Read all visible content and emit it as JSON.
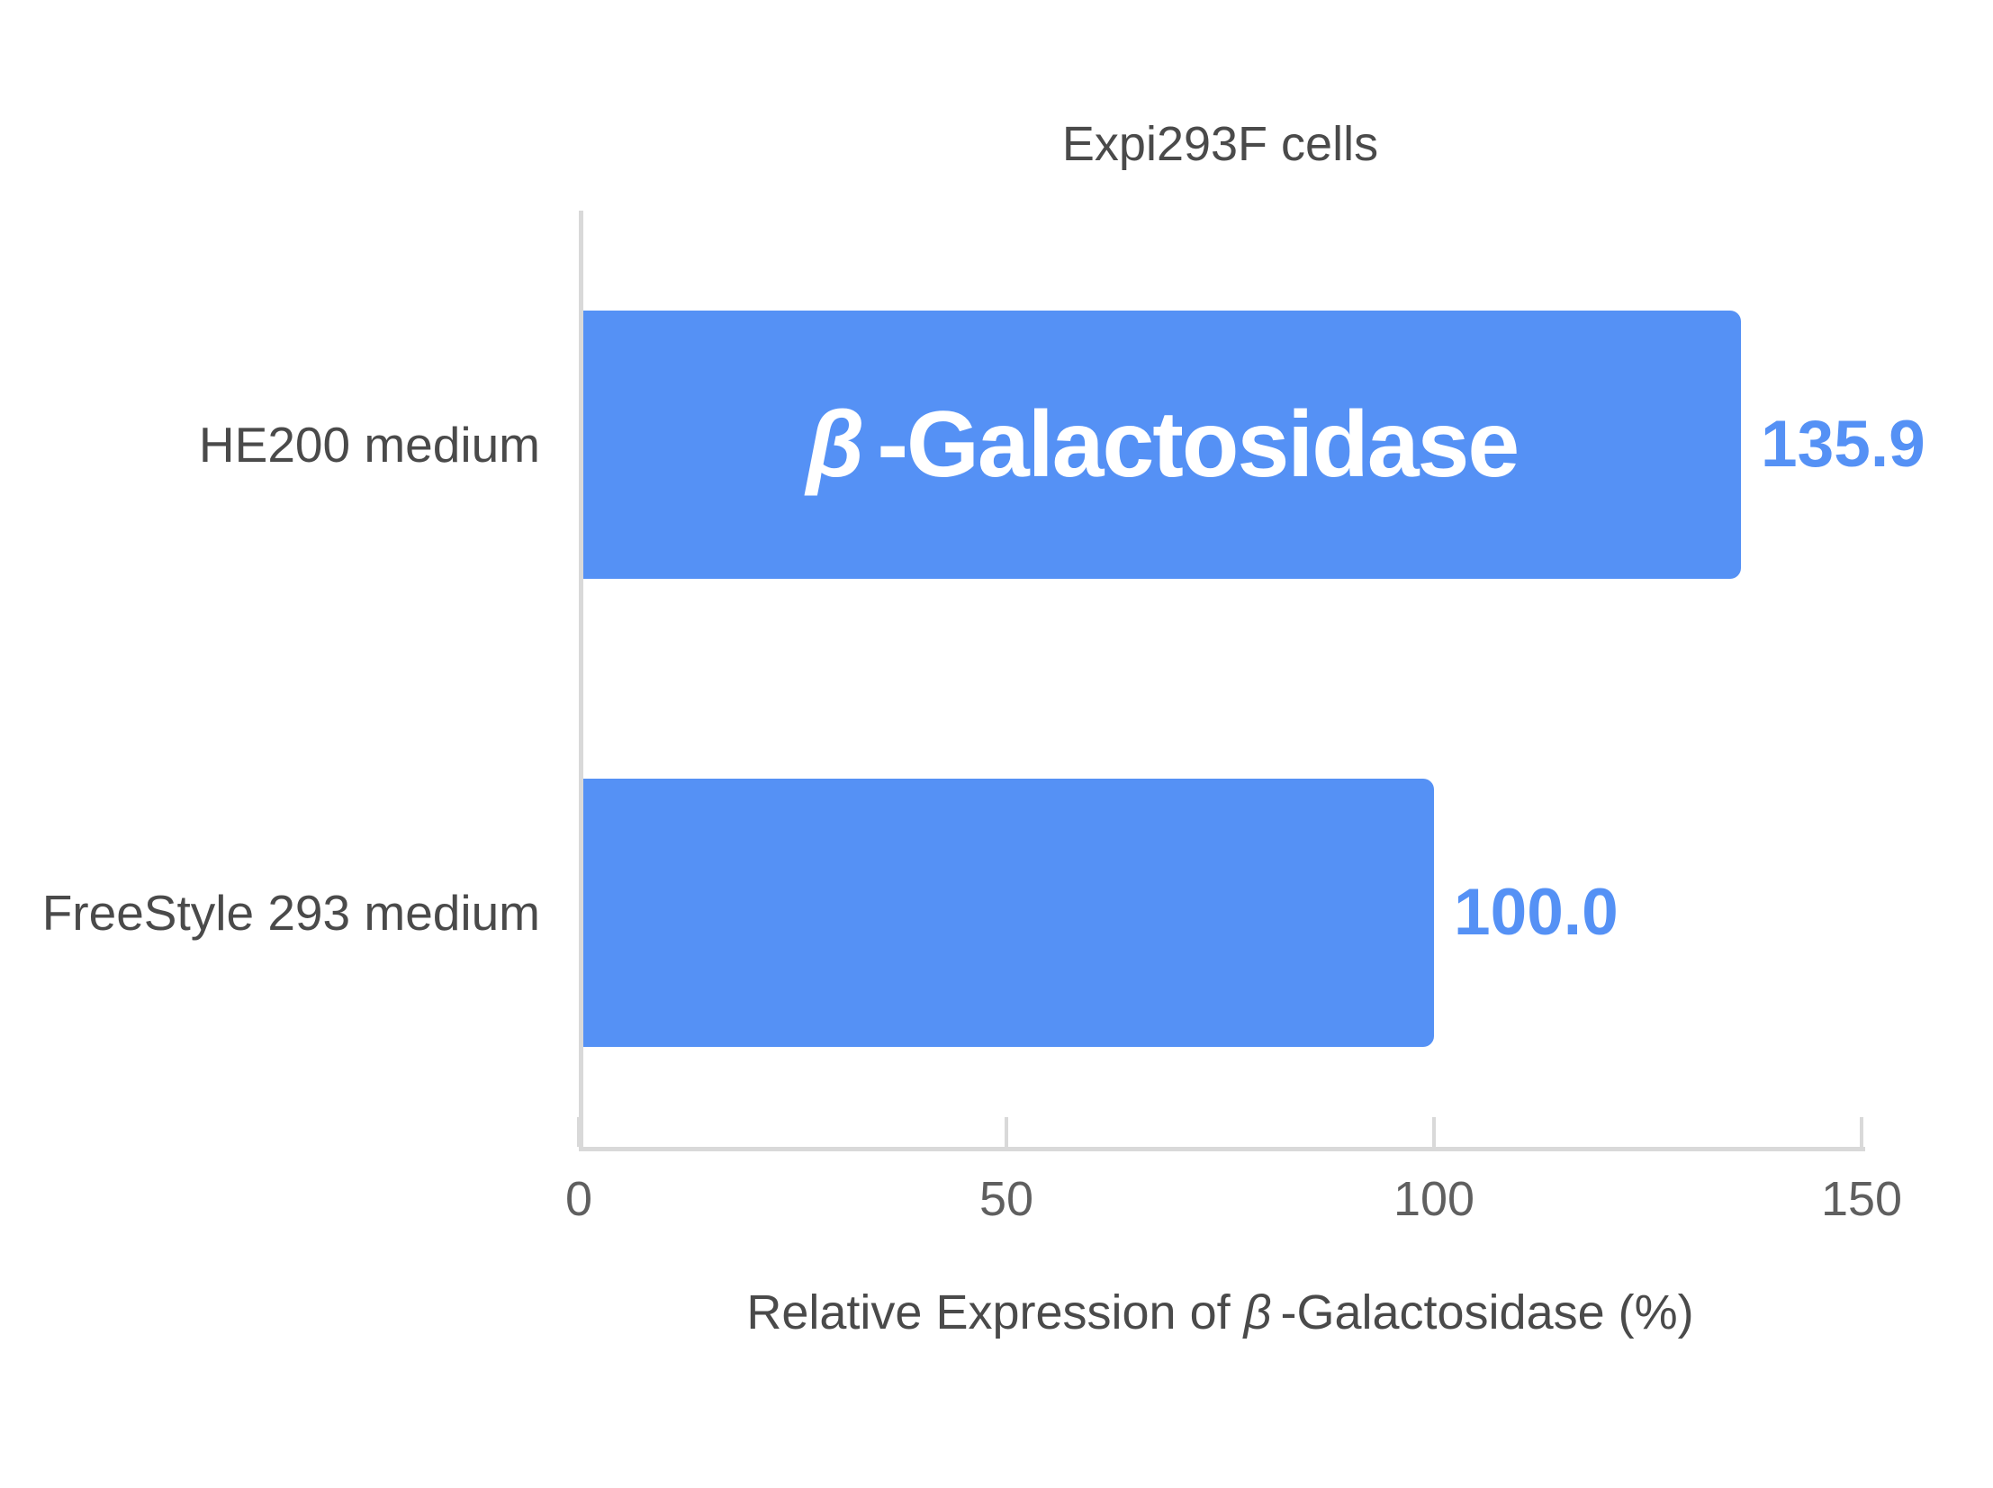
{
  "chart_data": {
    "type": "bar",
    "orientation": "horizontal",
    "title": "Expi293F cells",
    "categories": [
      "HE200 medium",
      "FreeStyle 293 medium"
    ],
    "values": [
      135.9,
      100.0
    ],
    "value_labels": [
      "135.9",
      "100.0"
    ],
    "bar_annotation": {
      "bar_index": 0,
      "beta": "β",
      "suffix": "-Galactosidase"
    },
    "xlabel": "Relative Expression of β-Galactosidase (%)",
    "xlabel_parts": {
      "prefix": "Relative Expression of ",
      "beta": "β",
      "suffix": "-Galactosidase (%)"
    },
    "xticks": [
      "0",
      "50",
      "100",
      "150"
    ],
    "xlim": [
      0,
      150
    ],
    "grid": false,
    "legend": "none",
    "colors": {
      "bar_fill": "#5591F5",
      "bar_text": "#FFFFFF",
      "value_label": "#5591F5",
      "axis_line": "#D9D9D9",
      "tick_label": "#5F5F5F",
      "text": "#4A4A4A",
      "background": "#FFFFFF"
    }
  }
}
